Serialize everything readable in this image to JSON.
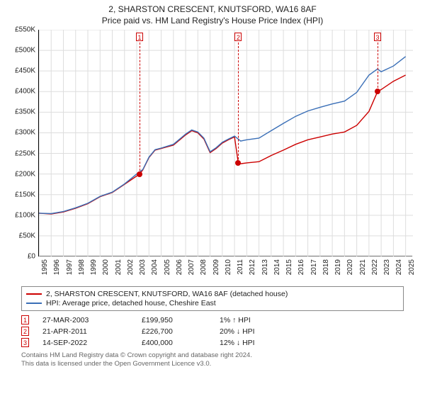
{
  "title_line1": "2, SHARSTON CRESCENT, KNUTSFORD, WA16 8AF",
  "title_line2": "Price paid vs. HM Land Registry's House Price Index (HPI)",
  "chart": {
    "type": "line",
    "background_color": "#ffffff",
    "grid_color": "#dddddd",
    "axis_color": "#000000",
    "label_fontsize": 10,
    "x": {
      "min": 1995,
      "max": 2025.6,
      "ticks": [
        1995,
        1996,
        1997,
        1998,
        1999,
        2000,
        2001,
        2002,
        2003,
        2004,
        2005,
        2006,
        2007,
        2008,
        2009,
        2010,
        2011,
        2012,
        2013,
        2014,
        2015,
        2016,
        2017,
        2018,
        2019,
        2020,
        2021,
        2022,
        2023,
        2024,
        2025
      ]
    },
    "y": {
      "min": 0,
      "max": 550000,
      "tick_step": 50000,
      "tick_labels": [
        "£0",
        "£50K",
        "£100K",
        "£150K",
        "£200K",
        "£250K",
        "£300K",
        "£350K",
        "£400K",
        "£450K",
        "£500K",
        "£550K"
      ]
    },
    "series": [
      {
        "name": "price_paid",
        "color": "#cc0000",
        "points": [
          [
            1995.0,
            105000
          ],
          [
            1996.0,
            103000
          ],
          [
            1997.0,
            108000
          ],
          [
            1998.0,
            117000
          ],
          [
            1999.0,
            128000
          ],
          [
            2000.0,
            145000
          ],
          [
            2001.0,
            155000
          ],
          [
            2002.0,
            175000
          ],
          [
            2003.23,
            199950
          ],
          [
            2003.5,
            210000
          ],
          [
            2004.0,
            240000
          ],
          [
            2004.5,
            258000
          ],
          [
            2005.0,
            262000
          ],
          [
            2006.0,
            270000
          ],
          [
            2007.0,
            295000
          ],
          [
            2007.5,
            305000
          ],
          [
            2008.0,
            300000
          ],
          [
            2008.5,
            285000
          ],
          [
            2009.0,
            252000
          ],
          [
            2009.5,
            262000
          ],
          [
            2010.0,
            275000
          ],
          [
            2010.5,
            283000
          ],
          [
            2011.0,
            290000
          ],
          [
            2011.31,
            226700
          ],
          [
            2011.5,
            225000
          ],
          [
            2012.0,
            227000
          ],
          [
            2013.0,
            230000
          ],
          [
            2014.0,
            245000
          ],
          [
            2015.0,
            258000
          ],
          [
            2016.0,
            272000
          ],
          [
            2017.0,
            283000
          ],
          [
            2018.0,
            290000
          ],
          [
            2019.0,
            297000
          ],
          [
            2020.0,
            302000
          ],
          [
            2021.0,
            318000
          ],
          [
            2022.0,
            352000
          ],
          [
            2022.7,
            400000
          ],
          [
            2023.0,
            405000
          ],
          [
            2024.0,
            425000
          ],
          [
            2025.0,
            440000
          ]
        ]
      },
      {
        "name": "hpi",
        "color": "#3a6fb7",
        "points": [
          [
            1995.0,
            105000
          ],
          [
            1996.0,
            104000
          ],
          [
            1997.0,
            109000
          ],
          [
            1998.0,
            118000
          ],
          [
            1999.0,
            129000
          ],
          [
            2000.0,
            146000
          ],
          [
            2001.0,
            156000
          ],
          [
            2002.0,
            176000
          ],
          [
            2003.0,
            200000
          ],
          [
            2003.5,
            211000
          ],
          [
            2004.0,
            241000
          ],
          [
            2004.5,
            259000
          ],
          [
            2005.0,
            263000
          ],
          [
            2006.0,
            272000
          ],
          [
            2007.0,
            297000
          ],
          [
            2007.5,
            307000
          ],
          [
            2008.0,
            302000
          ],
          [
            2008.5,
            287000
          ],
          [
            2009.0,
            254000
          ],
          [
            2009.5,
            264000
          ],
          [
            2010.0,
            277000
          ],
          [
            2010.5,
            285000
          ],
          [
            2011.0,
            292000
          ],
          [
            2011.5,
            280000
          ],
          [
            2012.0,
            283000
          ],
          [
            2013.0,
            287000
          ],
          [
            2014.0,
            305000
          ],
          [
            2015.0,
            323000
          ],
          [
            2016.0,
            340000
          ],
          [
            2017.0,
            353000
          ],
          [
            2018.0,
            362000
          ],
          [
            2019.0,
            370000
          ],
          [
            2020.0,
            377000
          ],
          [
            2021.0,
            398000
          ],
          [
            2022.0,
            440000
          ],
          [
            2022.7,
            455000
          ],
          [
            2023.0,
            448000
          ],
          [
            2024.0,
            462000
          ],
          [
            2025.0,
            485000
          ]
        ]
      }
    ],
    "markers": [
      {
        "n": "1",
        "x": 2003.23,
        "y": 199950
      },
      {
        "n": "2",
        "x": 2011.31,
        "y": 226700
      },
      {
        "n": "3",
        "x": 2022.7,
        "y": 400000
      }
    ]
  },
  "legend": {
    "series1_label": "2, SHARSTON CRESCENT, KNUTSFORD, WA16 8AF (detached house)",
    "series1_color": "#cc0000",
    "series2_label": "HPI: Average price, detached house, Cheshire East",
    "series2_color": "#3a6fb7"
  },
  "sales": [
    {
      "n": "1",
      "date": "27-MAR-2003",
      "price": "£199,950",
      "delta": "1% ↑ HPI"
    },
    {
      "n": "2",
      "date": "21-APR-2011",
      "price": "£226,700",
      "delta": "20% ↓ HPI"
    },
    {
      "n": "3",
      "date": "14-SEP-2022",
      "price": "£400,000",
      "delta": "12% ↓ HPI"
    }
  ],
  "footnote_line1": "Contains HM Land Registry data © Crown copyright and database right 2024.",
  "footnote_line2": "This data is licensed under the Open Government Licence v3.0."
}
